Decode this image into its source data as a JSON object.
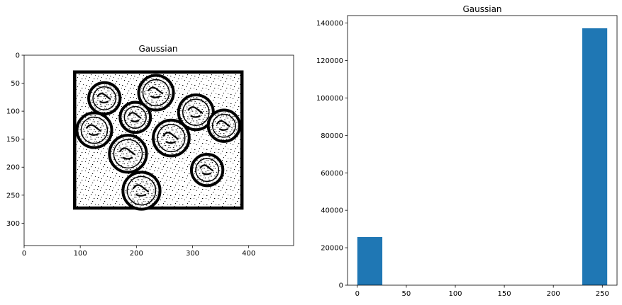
{
  "figure": {
    "background": "#ffffff"
  },
  "chart_data": [
    {
      "type": "image",
      "title": "Gaussian",
      "xlabel": "",
      "ylabel": "",
      "xlim": [
        0,
        480
      ],
      "ylim": [
        340,
        0
      ],
      "xticks": [
        0,
        100,
        200,
        300,
        400
      ],
      "yticks": [
        0,
        50,
        100,
        150,
        200,
        250,
        300
      ],
      "image_description": "binary thresholded image of coins inside a thick black square frame on white background",
      "frame": {
        "x0": 90,
        "y0": 30,
        "x1": 388,
        "y1": 273
      },
      "coins": [
        {
          "cx": 143,
          "cy": 77,
          "r": 28
        },
        {
          "cx": 235,
          "cy": 67,
          "r": 31
        },
        {
          "cx": 306,
          "cy": 102,
          "r": 31
        },
        {
          "cx": 198,
          "cy": 111,
          "r": 27
        },
        {
          "cx": 356,
          "cy": 126,
          "r": 28
        },
        {
          "cx": 125,
          "cy": 134,
          "r": 31
        },
        {
          "cx": 262,
          "cy": 148,
          "r": 32
        },
        {
          "cx": 185,
          "cy": 176,
          "r": 33
        },
        {
          "cx": 326,
          "cy": 205,
          "r": 28
        },
        {
          "cx": 209,
          "cy": 242,
          "r": 33
        }
      ]
    },
    {
      "type": "bar",
      "title": "Gaussian",
      "xlabel": "",
      "ylabel": "",
      "xlim": [
        -10,
        265
      ],
      "ylim": [
        0,
        144000
      ],
      "xticks": [
        0,
        50,
        100,
        150,
        200,
        250
      ],
      "yticks": [
        0,
        20000,
        40000,
        60000,
        80000,
        100000,
        120000,
        140000
      ],
      "bins": [
        {
          "x0": 0,
          "x1": 25.5,
          "value": 25700
        },
        {
          "x0": 229.5,
          "x1": 255,
          "value": 137200
        }
      ],
      "color": "#1f77b4"
    }
  ]
}
